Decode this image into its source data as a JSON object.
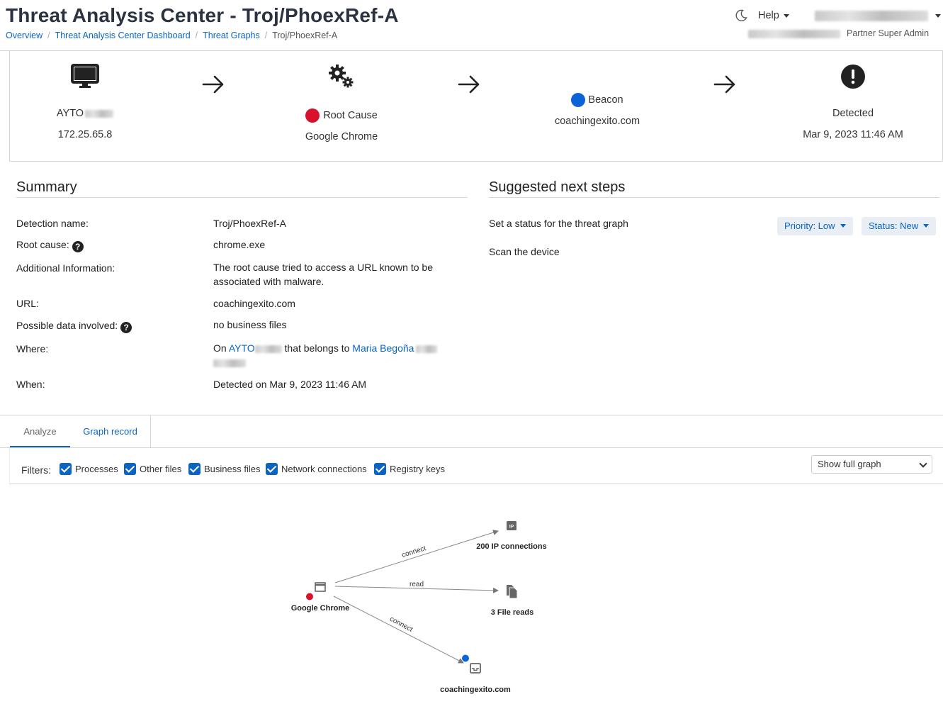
{
  "header": {
    "title": "Threat Analysis Center - Troj/PhoexRef-A",
    "breadcrumbs": [
      "Overview",
      "Threat Analysis Center Dashboard",
      "Threat Graphs",
      "Troj/PhoexRef-A"
    ],
    "help_label": "Help",
    "role": "Partner Super Admin"
  },
  "flow": {
    "device": {
      "icon": "monitor-icon",
      "name": "AYTO",
      "ip": "172.25.65.8"
    },
    "root": {
      "icon": "gears-icon",
      "label": "Root Cause",
      "process": "Google Chrome",
      "dot_color": "#d9112c"
    },
    "beacon": {
      "label": "Beacon",
      "domain": "coachingexito.com",
      "dot_color": "#0a64d8"
    },
    "detected": {
      "icon": "exclamation-icon",
      "label": "Detected",
      "time": "Mar 9, 2023 11:46 AM"
    }
  },
  "summary": {
    "title": "Summary",
    "rows": {
      "detection_name": {
        "label": "Detection name:",
        "value": "Troj/PhoexRef-A"
      },
      "root_cause": {
        "label": "Root cause:",
        "value": "chrome.exe"
      },
      "additional": {
        "label": "Additional Information:",
        "value": "The root cause tried to access a URL known to be associated with malware."
      },
      "url": {
        "label": "URL:",
        "value": "coachingexito.com"
      },
      "possible_data": {
        "label": "Possible data involved:",
        "value": "no business files"
      },
      "where": {
        "label": "Where:",
        "prefix": "On",
        "device": "AYTO",
        "middle": "that belongs to",
        "user": "Maria Begoña"
      },
      "when": {
        "label": "When:",
        "value": "Detected on Mar 9, 2023 11:46 AM"
      }
    }
  },
  "next_steps": {
    "title": "Suggested next steps",
    "status_text": "Set a status for the threat graph",
    "priority_label": "Priority: Low",
    "status_label": "Status: New",
    "scan_link": "Scan the device"
  },
  "tabs": [
    "Analyze",
    "Graph record"
  ],
  "filters": {
    "label": "Filters:",
    "items": [
      "Processes",
      "Other files",
      "Business files",
      "Network connections",
      "Registry keys"
    ],
    "select_value": "Show full graph"
  },
  "graph": {
    "nodes": {
      "chrome": "Google Chrome",
      "ip": "200 IP connections",
      "files": "3 File reads",
      "domain": "coachingexito.com"
    },
    "edges": {
      "to_ip": "connect",
      "to_files": "read",
      "to_domain": "connect"
    },
    "ip_badge": "IP"
  }
}
